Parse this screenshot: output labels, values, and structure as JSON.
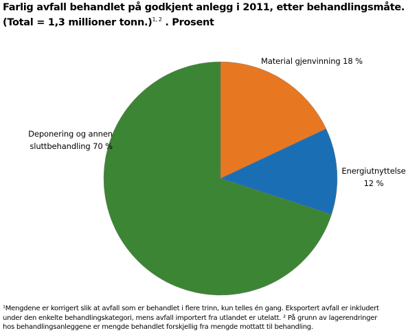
{
  "title": {
    "line1": "Farlig avfall behandlet på godkjent anlegg i 2011, etter behandlingsmåte.",
    "line2_main": "(Total = 1,3 millioner tonn.)",
    "line2_sup": "1, 2",
    "line2_suffix": " . Prosent"
  },
  "labels": {
    "material": "Material gjenvinning 18 %",
    "energi_line1": "Energiutnyttelse",
    "energi_line2": "12 %",
    "deponering_line1": "Deponering og annen",
    "deponering_line2": "sluttbehandling 70 %"
  },
  "footnote": {
    "line1": "¹Mengdene er korrigert slik at avfall som er behandlet i flere trinn, kun telles én gang. Eksportert avfall er inkludert",
    "line2": "under den enkelte behandlingskategori, mens avfall importert fra utlandet er utelatt. ² På grunn av lagerendringer",
    "line3": "hos behandlingsanleggene er mengde behandlet forskjellig fra mengde mottatt til behandling."
  },
  "colors": {
    "material": "#E87722",
    "energi": "#1A6FB4",
    "deponering": "#3C8535"
  },
  "chart_data": {
    "type": "pie",
    "title": "Farlig avfall behandlet på godkjent anlegg i 2011, etter behandlingsmåte. (Total = 1,3 millioner tonn.) Prosent",
    "categories": [
      "Material gjenvinning",
      "Energiutnyttelse",
      "Deponering og annen sluttbehandling"
    ],
    "values": [
      18,
      12,
      70
    ],
    "unit": "%",
    "start_angle": "12 o'clock, clockwise",
    "colors": [
      "#E87722",
      "#1A6FB4",
      "#3C8535"
    ],
    "legend": "none (direct labels)"
  }
}
